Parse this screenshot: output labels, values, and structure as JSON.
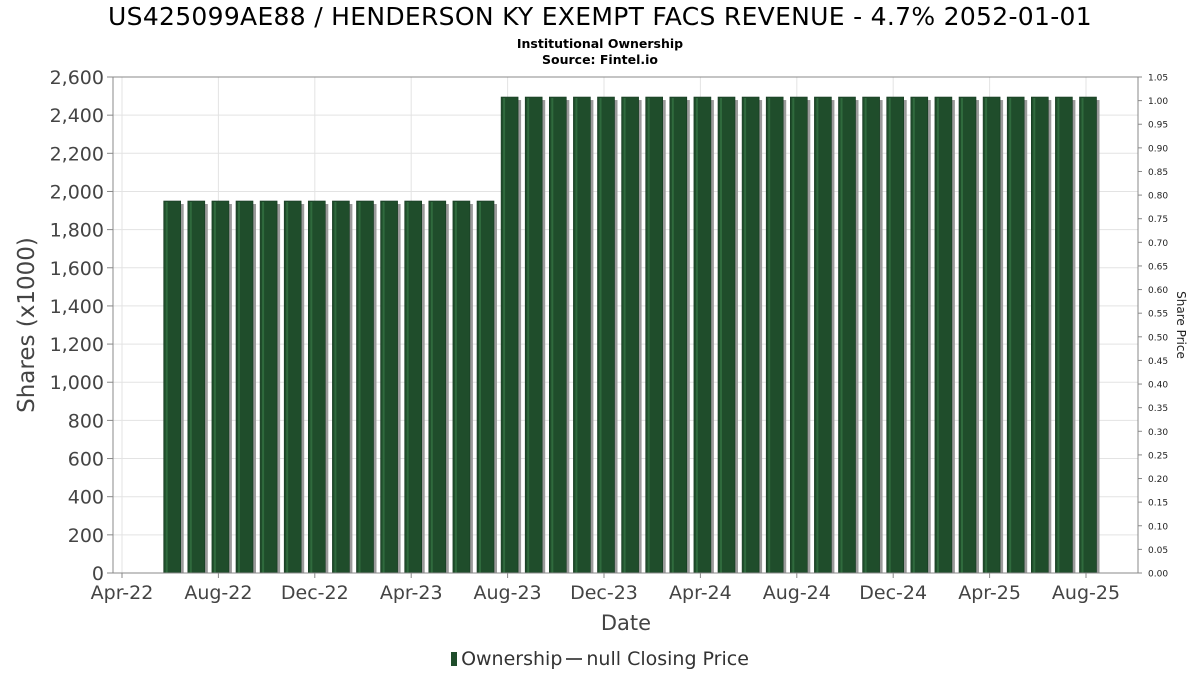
{
  "title": "US425099AE88 / HENDERSON KY EXEMPT FACS REVENUE - 4.7% 2052-01-01",
  "subtitle_lines": [
    "Institutional Ownership",
    "Source: Fintel.io"
  ],
  "chart_data": {
    "type": "bar",
    "xlabel": "Date",
    "ylabel": "Shares (x1000)",
    "y2label": "Share Price",
    "ylim": [
      0,
      2600
    ],
    "y2lim": [
      0,
      1.05
    ],
    "yticks": [
      "0",
      "200",
      "400",
      "600",
      "800",
      "1,000",
      "1,200",
      "1,400",
      "1,600",
      "1,800",
      "2,000",
      "2,200",
      "2,400",
      "2,600"
    ],
    "y2ticks": [
      "0.00",
      "0.05",
      "0.10",
      "0.15",
      "0.20",
      "0.25",
      "0.30",
      "0.35",
      "0.40",
      "0.45",
      "0.50",
      "0.55",
      "0.60",
      "0.65",
      "0.70",
      "0.75",
      "0.80",
      "0.85",
      "0.90",
      "0.95",
      "1.00",
      "1.05"
    ],
    "xticks": [
      "Apr-22",
      "Aug-22",
      "Dec-22",
      "Apr-23",
      "Aug-23",
      "Dec-23",
      "Apr-24",
      "Aug-24",
      "Dec-24",
      "Apr-25",
      "Aug-25"
    ],
    "grid": true,
    "legend_position": "bottom",
    "series": [
      {
        "name": "Ownership",
        "color": "#1f4d2b",
        "categories": [
          "Jun-22",
          "Jul-22",
          "Aug-22",
          "Sep-22",
          "Oct-22",
          "Nov-22",
          "Dec-22",
          "Jan-23",
          "Feb-23",
          "Mar-23",
          "Apr-23",
          "May-23",
          "Jun-23",
          "Jul-23",
          "Aug-23",
          "Sep-23",
          "Oct-23",
          "Nov-23",
          "Dec-23",
          "Jan-24",
          "Feb-24",
          "Mar-24",
          "Apr-24",
          "May-24",
          "Jun-24",
          "Jul-24",
          "Aug-24",
          "Sep-24",
          "Oct-24",
          "Nov-24",
          "Dec-24",
          "Jan-25",
          "Feb-25",
          "Mar-25",
          "Apr-25",
          "May-25",
          "Jun-25",
          "Jul-25",
          "Aug-25"
        ],
        "values": [
          1950,
          1950,
          1950,
          1950,
          1950,
          1950,
          1950,
          1950,
          1950,
          1950,
          1950,
          1950,
          1950,
          1950,
          2495,
          2495,
          2495,
          2495,
          2495,
          2495,
          2495,
          2495,
          2495,
          2495,
          2495,
          2495,
          2495,
          2495,
          2495,
          2495,
          2495,
          2495,
          2495,
          2495,
          2495,
          2495,
          2495,
          2495,
          2495
        ]
      },
      {
        "name": "null Closing Price",
        "color": "#555555",
        "values": []
      }
    ]
  },
  "legend": {
    "ownership_label": "Ownership",
    "price_label": "null Closing Price"
  }
}
